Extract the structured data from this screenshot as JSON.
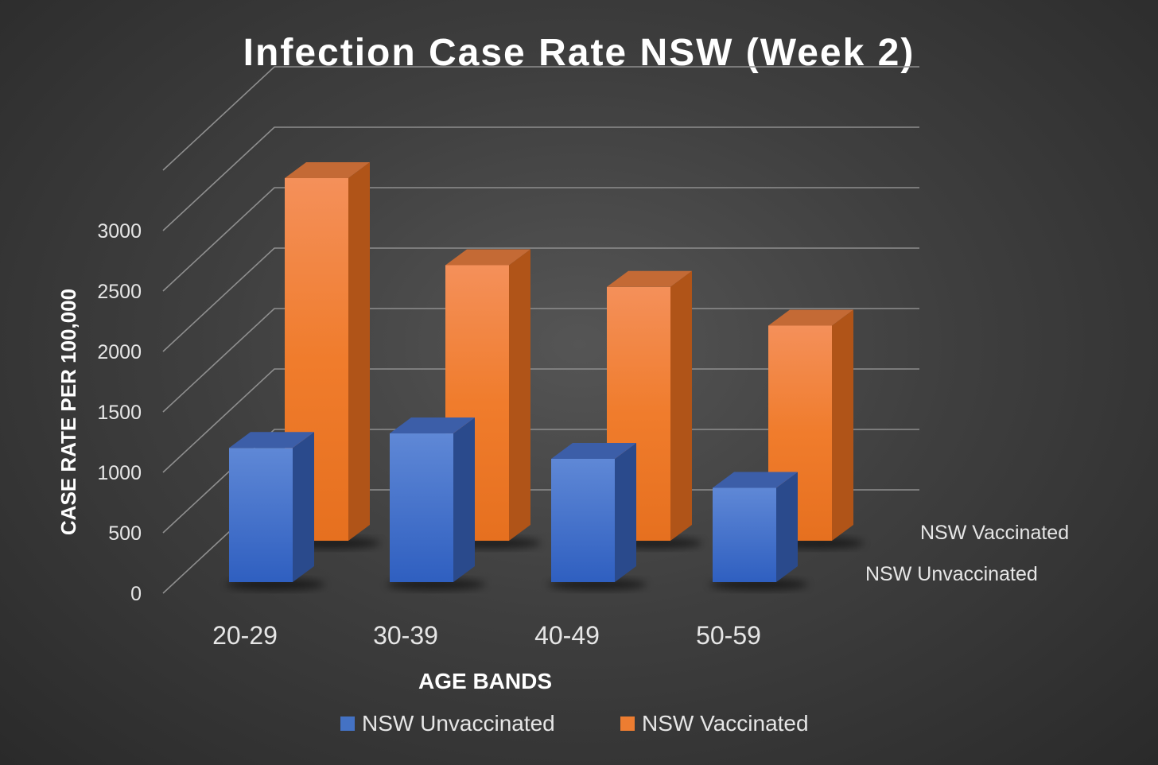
{
  "chart_data": {
    "type": "bar",
    "title": "Infection Case Rate NSW (Week 2)",
    "xlabel": "AGE BANDS",
    "ylabel": "CASE RATE PER 100,000",
    "categories": [
      "20-29",
      "30-39",
      "40-49",
      "50-59"
    ],
    "yticks": [
      "0",
      "500",
      "1000",
      "1500",
      "2000",
      "2500",
      "3000"
    ],
    "ylim": [
      0,
      3500
    ],
    "grid": true,
    "legend_position": "bottom",
    "series": [
      {
        "name": "NSW Unvaccinated",
        "values": [
          1110,
          1230,
          1020,
          780
        ],
        "color": "#4472c4"
      },
      {
        "name": "NSW Vaccinated",
        "values": [
          3000,
          2280,
          2100,
          1780
        ],
        "color": "#ed7d31"
      }
    ],
    "depth_labels": [
      "NSW Vaccinated",
      "NSW Unvaccinated"
    ]
  }
}
